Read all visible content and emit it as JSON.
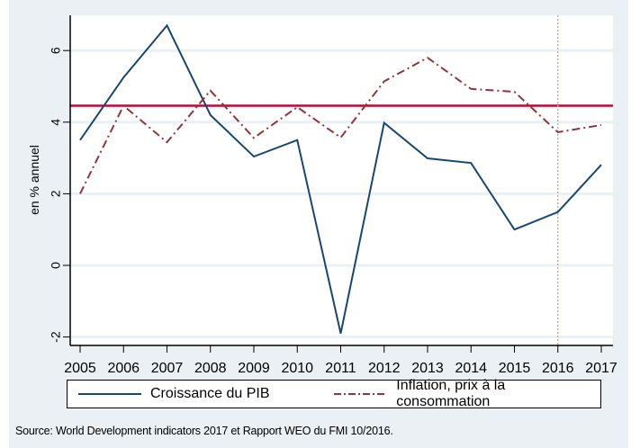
{
  "chart_data": {
    "type": "line",
    "title": "",
    "xlabel": "",
    "ylabel": "en % annuel",
    "x": [
      2005,
      2006,
      2007,
      2008,
      2009,
      2010,
      2011,
      2012,
      2013,
      2014,
      2015,
      2016,
      2017
    ],
    "x_tick_labels": [
      "2005",
      "2006",
      "2007",
      "2008",
      "2009",
      "2010",
      "2011",
      "2012",
      "2013",
      "2014",
      "2015",
      "2016",
      "2017"
    ],
    "y_ticks": [
      -2,
      0,
      2,
      4,
      6
    ],
    "y_tick_labels": [
      "-2",
      "0",
      "2",
      "4",
      "6"
    ],
    "ylim": [
      -2.05,
      6.95
    ],
    "xlim": [
      2004.8,
      2017.25
    ],
    "grid": "horizontal",
    "series": [
      {
        "name": "Croissance du PIB",
        "color": "#1a476f",
        "style": "solid",
        "values": [
          3.5,
          5.25,
          6.7,
          4.2,
          3.04,
          3.5,
          -1.9,
          3.98,
          2.99,
          2.86,
          1.0,
          1.49,
          2.81
        ]
      },
      {
        "name": "Inflation, prix à la consommation",
        "color": "#90353b",
        "style": "dash-dot",
        "values": [
          2.0,
          4.46,
          3.44,
          4.88,
          3.56,
          4.42,
          3.57,
          5.14,
          5.8,
          4.93,
          4.85,
          3.72,
          3.92
        ]
      }
    ],
    "reference_lines": [
      {
        "orientation": "horizontal",
        "value": 4.46,
        "color": "#c10534",
        "style": "solid"
      },
      {
        "orientation": "vertical",
        "value": 2016,
        "color": "#c8b870",
        "style": "dotted"
      }
    ],
    "legend": {
      "position": "bottom",
      "entries": [
        "Croissance du PIB",
        "Inflation, prix à la consommation"
      ]
    }
  },
  "source_note": "Source: World Development indicators 2017 et Rapport WEO du FMI 10/2016."
}
